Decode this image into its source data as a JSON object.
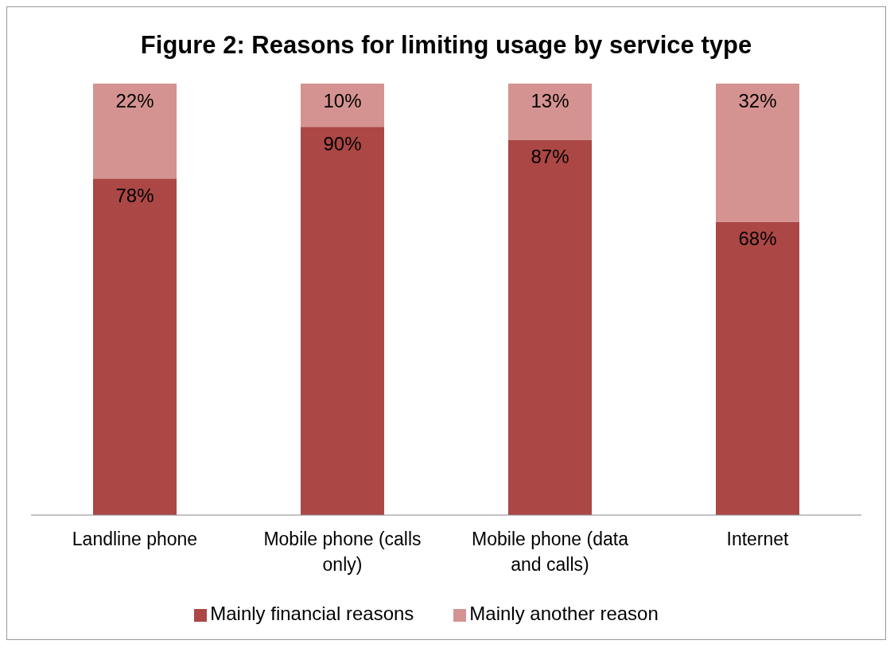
{
  "chart_data": {
    "type": "bar",
    "title": "Figure 2: Reasons for limiting usage by service type",
    "categories": [
      "Landline phone",
      "Mobile phone (calls only)",
      "Mobile phone (data and calls)",
      "Internet"
    ],
    "stacked": true,
    "ylim": [
      0,
      100
    ],
    "tick_labels": "x",
    "legend": "bottom",
    "series": [
      {
        "name": "Mainly financial reasons",
        "color": "#ab4745",
        "values": [
          78,
          90,
          87,
          68
        ],
        "value_labels": [
          "78%",
          "90%",
          "87%",
          "68%"
        ]
      },
      {
        "name": "Mainly another reason",
        "color": "#d49391",
        "values": [
          22,
          10,
          13,
          32
        ],
        "value_labels": [
          "22%",
          "10%",
          "13%",
          "32%"
        ]
      }
    ]
  }
}
